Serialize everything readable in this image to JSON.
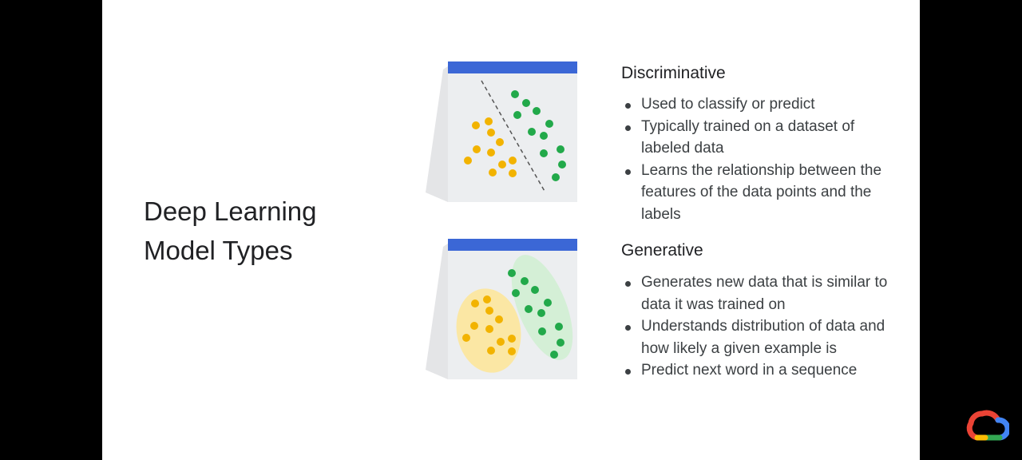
{
  "title": {
    "line1": "Deep Learning",
    "line2": "Model Types"
  },
  "discriminative": {
    "heading": "Discriminative",
    "bullets": [
      "Used to classify or predict",
      "Typically trained on a dataset of labeled data",
      "Learns the relationship between the features of the data points and the labels"
    ]
  },
  "generative": {
    "heading": "Generative",
    "bullets": [
      "Generates new data that is similar to data it was trained on",
      "Understands distribution of data and how likely a given example is",
      "Predict next word in a sequence"
    ]
  },
  "colors": {
    "accent": "#3b67d6",
    "yellow": "#f2b300",
    "green": "#22a94a",
    "yellow_region": "#fbe7a4",
    "green_region": "#d4efd6"
  },
  "icons": {
    "logo": "google-cloud-logo"
  }
}
